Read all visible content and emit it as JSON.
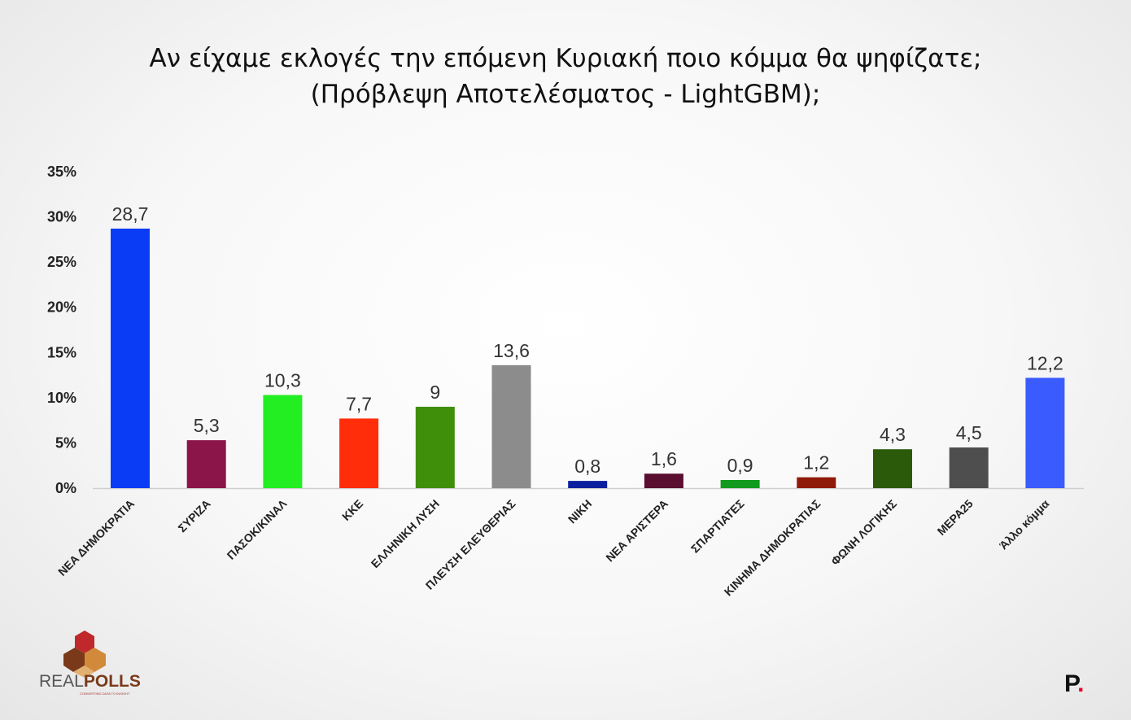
{
  "title_line1": "Αν είχαμε εκλογές την επόμενη Κυριακή ποιο κόμμα θα ψηφίζατε;",
  "title_line2": "(Πρόβλεψη Αποτελέσματος - LightGBM);",
  "chart_data": {
    "type": "bar",
    "title": "Αν είχαμε εκλογές την επόμενη Κυριακή ποιο κόμμα θα ψηφίζατε; (Πρόβλεψη Αποτελέσματος - LightGBM);",
    "xlabel": "",
    "ylabel": "",
    "ylim": [
      0,
      35
    ],
    "yticks": [
      "0%",
      "5%",
      "10%",
      "15%",
      "20%",
      "25%",
      "30%",
      "35%"
    ],
    "grid": false,
    "categories": [
      "ΝΕΑ ΔΗΜΟΚΡΑΤΙΑ",
      "ΣΥΡΙΖΑ",
      "ΠΑΣΟΚ/ΚΙΝΑΛ",
      "ΚΚΕ",
      "ΕΛΛΗΝΙΚΗ ΛΥΣΗ",
      "ΠΛΕΥΣΗ ΕΛΕΥΘΕΡΙΑΣ",
      "ΝΙΚΗ",
      "ΝΕΑ ΑΡΙΣΤΕΡΑ",
      "ΣΠΑΡΤΙΑΤΕΣ",
      "ΚΙΝΗΜΑ ΔΗΜΟΚΡΑΤΙΑΣ",
      "ΦΩΝΗ ΛΟΓΙΚΗΣ",
      "ΜΕΡΑ25",
      "Άλλο κόμμα"
    ],
    "values": [
      28.7,
      5.3,
      10.3,
      7.7,
      9,
      13.6,
      0.8,
      1.6,
      0.9,
      1.2,
      4.3,
      4.5,
      12.2
    ],
    "value_labels": [
      "28,7",
      "5,3",
      "10,3",
      "7,7",
      "9",
      "13,6",
      "0,8",
      "1,6",
      "0,9",
      "1,2",
      "4,3",
      "4,5",
      "12,2"
    ],
    "colors": [
      "#0a3cf5",
      "#8b1448",
      "#22ee22",
      "#ff2d0a",
      "#3f8f0a",
      "#8c8c8c",
      "#0a1f9e",
      "#5a0f30",
      "#119a1e",
      "#8f1a0a",
      "#2a5a0a",
      "#4e4e4e",
      "#3a5cff"
    ]
  },
  "branding": {
    "logo_left_text_a": "REAL",
    "logo_left_text_b": "POLLS",
    "logo_left_tagline": "CONVERTING DATA TO INSIGHT",
    "logo_right_letter": "P",
    "logo_right_dot": "."
  }
}
